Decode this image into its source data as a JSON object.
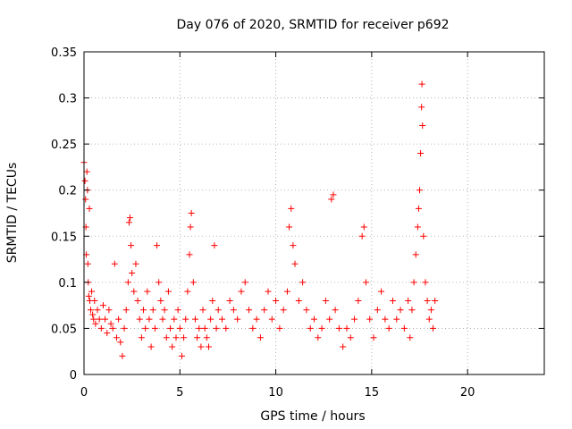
{
  "chart_data": {
    "type": "scatter",
    "title": "Day 076 of 2020, SRMTID for receiver p692",
    "xlabel": "GPS time / hours",
    "ylabel": "SRMTID / TECUs",
    "xlim": [
      0,
      24
    ],
    "ylim": [
      0,
      0.35
    ],
    "x_ticks": [
      0,
      5,
      10,
      15,
      20
    ],
    "x_tick_labels": [
      "0",
      "5",
      "10",
      "15",
      "20"
    ],
    "y_ticks": [
      0,
      0.05,
      0.1,
      0.15,
      0.2,
      0.25,
      0.3,
      0.35
    ],
    "y_tick_labels": [
      "0",
      "0.05",
      "0.1",
      "0.15",
      "0.2",
      "0.25",
      "0.3",
      "0.35"
    ],
    "grid": true,
    "marker": "+",
    "series": [
      {
        "name": "SRMTID",
        "color": "#ff0000",
        "points": [
          [
            0.0,
            0.23
          ],
          [
            0.05,
            0.21
          ],
          [
            0.08,
            0.19
          ],
          [
            0.1,
            0.16
          ],
          [
            0.12,
            0.13
          ],
          [
            0.15,
            0.22
          ],
          [
            0.18,
            0.2
          ],
          [
            0.2,
            0.12
          ],
          [
            0.22,
            0.1
          ],
          [
            0.25,
            0.085
          ],
          [
            0.28,
            0.18
          ],
          [
            0.3,
            0.08
          ],
          [
            0.35,
            0.07
          ],
          [
            0.4,
            0.09
          ],
          [
            0.45,
            0.065
          ],
          [
            0.5,
            0.06
          ],
          [
            0.55,
            0.08
          ],
          [
            0.6,
            0.055
          ],
          [
            0.7,
            0.07
          ],
          [
            0.8,
            0.06
          ],
          [
            0.9,
            0.05
          ],
          [
            1.0,
            0.075
          ],
          [
            1.1,
            0.06
          ],
          [
            1.2,
            0.045
          ],
          [
            1.3,
            0.07
          ],
          [
            1.4,
            0.055
          ],
          [
            1.5,
            0.05
          ],
          [
            1.6,
            0.12
          ],
          [
            1.7,
            0.04
          ],
          [
            1.8,
            0.06
          ],
          [
            1.9,
            0.035
          ],
          [
            2.0,
            0.02
          ],
          [
            2.1,
            0.05
          ],
          [
            2.2,
            0.07
          ],
          [
            2.3,
            0.1
          ],
          [
            2.35,
            0.165
          ],
          [
            2.4,
            0.17
          ],
          [
            2.45,
            0.14
          ],
          [
            2.5,
            0.11
          ],
          [
            2.6,
            0.09
          ],
          [
            2.7,
            0.12
          ],
          [
            2.8,
            0.08
          ],
          [
            2.9,
            0.06
          ],
          [
            3.0,
            0.04
          ],
          [
            3.1,
            0.07
          ],
          [
            3.2,
            0.05
          ],
          [
            3.3,
            0.09
          ],
          [
            3.4,
            0.06
          ],
          [
            3.5,
            0.03
          ],
          [
            3.6,
            0.07
          ],
          [
            3.7,
            0.05
          ],
          [
            3.8,
            0.14
          ],
          [
            3.9,
            0.1
          ],
          [
            4.0,
            0.08
          ],
          [
            4.1,
            0.06
          ],
          [
            4.2,
            0.07
          ],
          [
            4.3,
            0.04
          ],
          [
            4.4,
            0.09
          ],
          [
            4.5,
            0.05
          ],
          [
            4.6,
            0.03
          ],
          [
            4.7,
            0.06
          ],
          [
            4.8,
            0.04
          ],
          [
            4.9,
            0.07
          ],
          [
            5.0,
            0.05
          ],
          [
            5.1,
            0.02
          ],
          [
            5.2,
            0.04
          ],
          [
            5.3,
            0.06
          ],
          [
            5.4,
            0.09
          ],
          [
            5.5,
            0.13
          ],
          [
            5.55,
            0.16
          ],
          [
            5.6,
            0.175
          ],
          [
            5.7,
            0.1
          ],
          [
            5.8,
            0.06
          ],
          [
            5.9,
            0.04
          ],
          [
            6.0,
            0.05
          ],
          [
            6.1,
            0.03
          ],
          [
            6.2,
            0.07
          ],
          [
            6.3,
            0.05
          ],
          [
            6.4,
            0.04
          ],
          [
            6.5,
            0.03
          ],
          [
            6.6,
            0.06
          ],
          [
            6.7,
            0.08
          ],
          [
            6.8,
            0.14
          ],
          [
            6.9,
            0.05
          ],
          [
            7.0,
            0.07
          ],
          [
            7.2,
            0.06
          ],
          [
            7.4,
            0.05
          ],
          [
            7.6,
            0.08
          ],
          [
            7.8,
            0.07
          ],
          [
            8.0,
            0.06
          ],
          [
            8.2,
            0.09
          ],
          [
            8.4,
            0.1
          ],
          [
            8.6,
            0.07
          ],
          [
            8.8,
            0.05
          ],
          [
            9.0,
            0.06
          ],
          [
            9.2,
            0.04
          ],
          [
            9.4,
            0.07
          ],
          [
            9.6,
            0.09
          ],
          [
            9.8,
            0.06
          ],
          [
            10.0,
            0.08
          ],
          [
            10.2,
            0.05
          ],
          [
            10.4,
            0.07
          ],
          [
            10.6,
            0.09
          ],
          [
            10.7,
            0.16
          ],
          [
            10.8,
            0.18
          ],
          [
            10.9,
            0.14
          ],
          [
            11.0,
            0.12
          ],
          [
            11.2,
            0.08
          ],
          [
            11.4,
            0.1
          ],
          [
            11.6,
            0.07
          ],
          [
            11.8,
            0.05
          ],
          [
            12.0,
            0.06
          ],
          [
            12.2,
            0.04
          ],
          [
            12.4,
            0.05
          ],
          [
            12.6,
            0.08
          ],
          [
            12.8,
            0.06
          ],
          [
            12.9,
            0.19
          ],
          [
            13.0,
            0.195
          ],
          [
            13.1,
            0.07
          ],
          [
            13.3,
            0.05
          ],
          [
            13.5,
            0.03
          ],
          [
            13.7,
            0.05
          ],
          [
            13.9,
            0.04
          ],
          [
            14.1,
            0.06
          ],
          [
            14.3,
            0.08
          ],
          [
            14.5,
            0.15
          ],
          [
            14.6,
            0.16
          ],
          [
            14.7,
            0.1
          ],
          [
            14.9,
            0.06
          ],
          [
            15.1,
            0.04
          ],
          [
            15.3,
            0.07
          ],
          [
            15.5,
            0.09
          ],
          [
            15.7,
            0.06
          ],
          [
            15.9,
            0.05
          ],
          [
            16.1,
            0.08
          ],
          [
            16.3,
            0.06
          ],
          [
            16.5,
            0.07
          ],
          [
            16.7,
            0.05
          ],
          [
            16.9,
            0.08
          ],
          [
            17.0,
            0.04
          ],
          [
            17.1,
            0.07
          ],
          [
            17.2,
            0.1
          ],
          [
            17.3,
            0.13
          ],
          [
            17.4,
            0.16
          ],
          [
            17.45,
            0.18
          ],
          [
            17.5,
            0.2
          ],
          [
            17.55,
            0.24
          ],
          [
            17.6,
            0.29
          ],
          [
            17.62,
            0.315
          ],
          [
            17.65,
            0.27
          ],
          [
            17.7,
            0.15
          ],
          [
            17.8,
            0.1
          ],
          [
            17.9,
            0.08
          ],
          [
            18.0,
            0.06
          ],
          [
            18.1,
            0.07
          ],
          [
            18.2,
            0.05
          ],
          [
            18.3,
            0.08
          ]
        ]
      }
    ]
  }
}
